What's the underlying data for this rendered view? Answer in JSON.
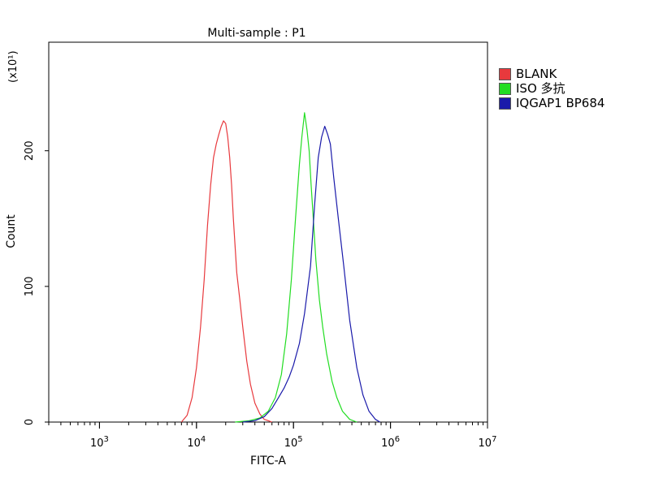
{
  "chart_data": {
    "type": "line",
    "title": "Multi-sample : P1",
    "xlabel": "FITC-A",
    "ylabel": "Count",
    "y_multiplier": "(x10¹)",
    "x_scale": "log",
    "xlim": [
      300,
      10000000
    ],
    "ylim": [
      0,
      280
    ],
    "x_ticks": [
      {
        "value": 1000,
        "base": "10",
        "exp": "3"
      },
      {
        "value": 10000,
        "base": "10",
        "exp": "4"
      },
      {
        "value": 100000,
        "base": "10",
        "exp": "5"
      },
      {
        "value": 1000000,
        "base": "10",
        "exp": "6"
      },
      {
        "value": 10000000,
        "base": "10",
        "exp": "7"
      }
    ],
    "y_ticks": [
      0,
      100,
      200
    ],
    "grid": false,
    "legend_position": "right",
    "series": [
      {
        "name": "BLANK",
        "color": "#e8393d",
        "x": [
          7000,
          8000,
          9000,
          10000,
          11000,
          12000,
          13000,
          14000,
          15000,
          16000,
          17000,
          18000,
          19000,
          20000,
          21000,
          22000,
          23000,
          24000,
          26000,
          28000,
          30000,
          33000,
          36000,
          40000,
          45000,
          50000,
          55000,
          60000
        ],
        "y": [
          0,
          5,
          18,
          40,
          70,
          105,
          145,
          175,
          195,
          205,
          212,
          218,
          222,
          220,
          210,
          195,
          175,
          150,
          110,
          90,
          70,
          45,
          28,
          14,
          6,
          2,
          1,
          0
        ]
      },
      {
        "name": "ISO 多抗",
        "color": "#22dd22",
        "x": [
          25000,
          35000,
          45000,
          55000,
          65000,
          75000,
          85000,
          95000,
          105000,
          115000,
          122000,
          130000,
          138000,
          145000,
          152000,
          160000,
          170000,
          185000,
          200000,
          220000,
          250000,
          280000,
          320000,
          380000,
          450000
        ],
        "y": [
          0,
          1,
          3,
          8,
          18,
          35,
          65,
          105,
          150,
          190,
          210,
          228,
          215,
          200,
          175,
          150,
          120,
          90,
          70,
          50,
          30,
          18,
          8,
          2,
          0
        ]
      },
      {
        "name": "IQGAP1 BP684",
        "color": "#1a1aaa",
        "x": [
          30000,
          40000,
          50000,
          60000,
          70000,
          80000,
          90000,
          100000,
          115000,
          130000,
          150000,
          165000,
          180000,
          195000,
          210000,
          225000,
          240000,
          260000,
          290000,
          330000,
          380000,
          450000,
          520000,
          600000,
          700000,
          780000
        ],
        "y": [
          0,
          1,
          4,
          10,
          18,
          25,
          33,
          42,
          58,
          80,
          115,
          160,
          195,
          210,
          218,
          212,
          205,
          180,
          150,
          115,
          75,
          40,
          20,
          8,
          2,
          0
        ]
      }
    ]
  }
}
